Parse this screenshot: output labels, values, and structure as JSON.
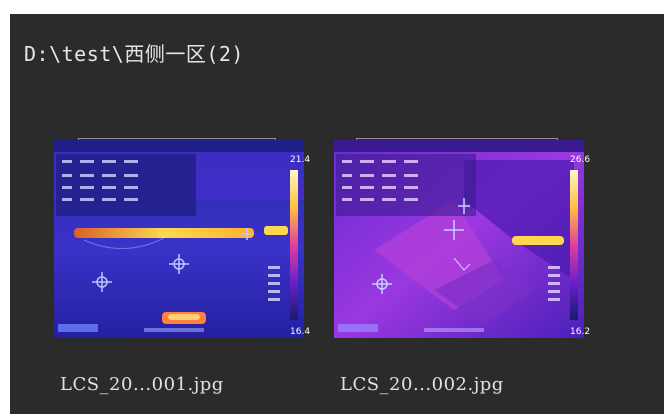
{
  "folder": {
    "path": "D:\\test\\西侧一区(2)"
  },
  "thumbnails": [
    {
      "filename": "LCS_20...001.jpg",
      "scale_max": "21.4",
      "scale_min": "16.4",
      "icon": "thermal-image-icon"
    },
    {
      "filename": "LCS_20...002.jpg",
      "scale_max": "26.6",
      "scale_min": "16.2",
      "icon": "thermal-image-icon"
    }
  ],
  "colors": {
    "panel_bg": "#2b2b2b",
    "text": "#e6e6e6",
    "thermal_cold": "#1a1a8a",
    "thermal_mid": "#8a2bd8",
    "thermal_hot": "#ffcc33"
  }
}
